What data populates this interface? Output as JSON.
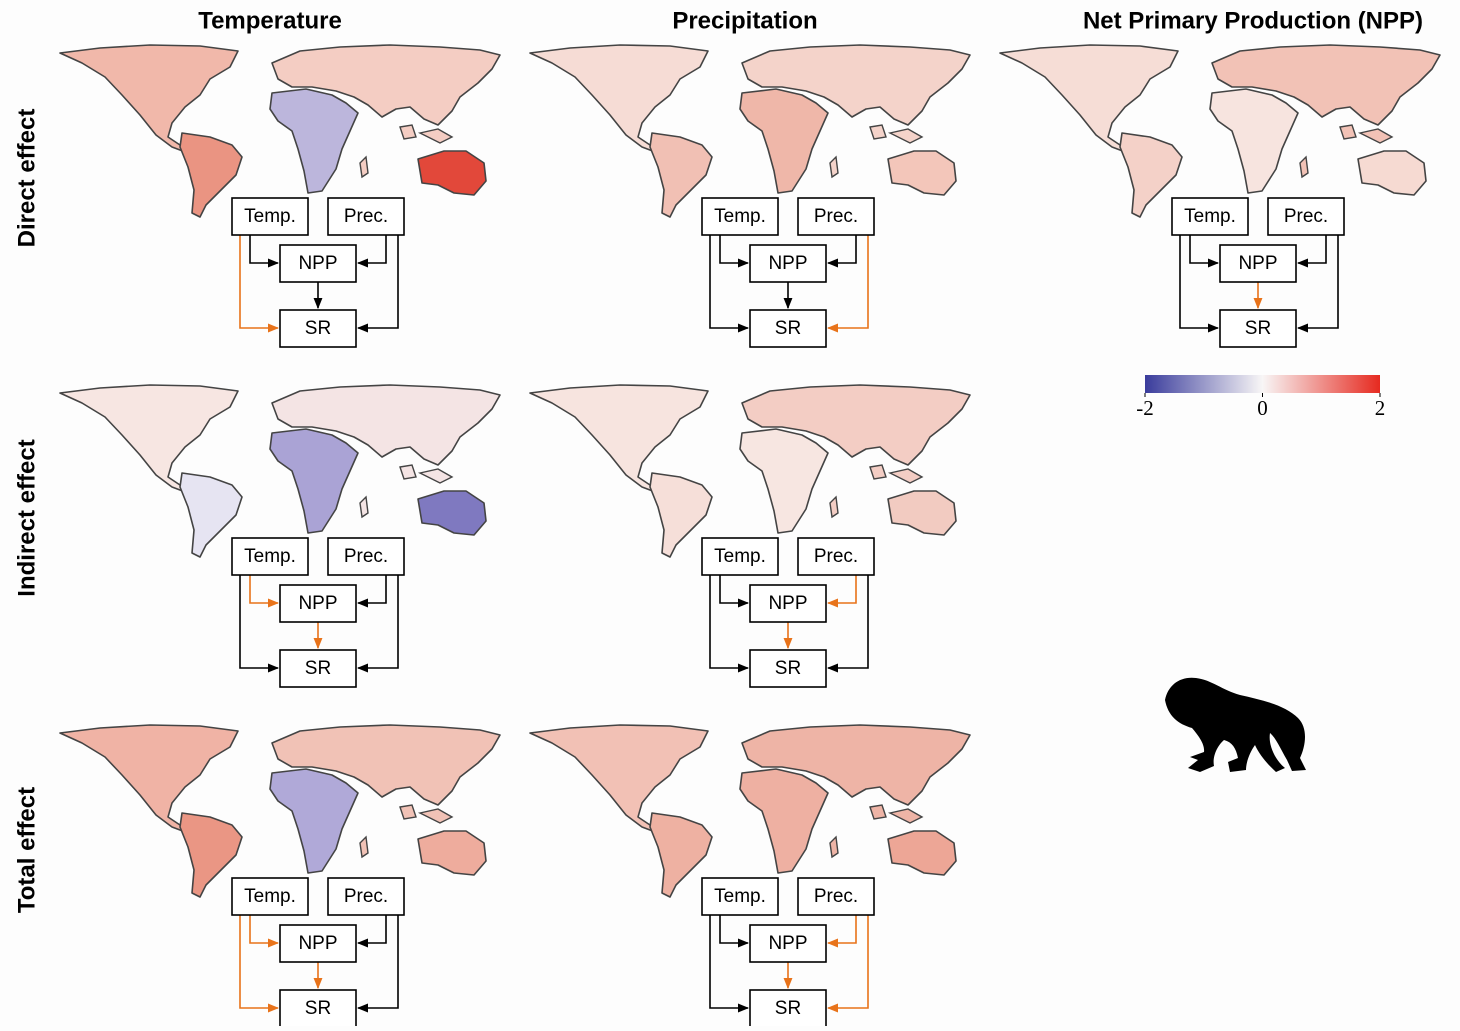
{
  "columns": [
    "Temperature",
    "Precipitation",
    "Net Primary Production (NPP)"
  ],
  "rows": [
    {
      "label": "Direct effect",
      "panels": [
        {
          "nodes": [
            "Temp.",
            "Prec.",
            "NPP",
            "SR"
          ],
          "orange": [
            [
              "Temp.",
              "SR"
            ]
          ],
          "colors": {
            "north_america": "#f1b8aa",
            "south_america": "#ea9482",
            "eurasia": "#f4cdc3",
            "africa": "#bcb6dc",
            "australia": "#e2483a"
          }
        },
        {
          "nodes": [
            "Temp.",
            "Prec.",
            "NPP",
            "SR"
          ],
          "orange": [
            [
              "Prec.",
              "SR"
            ]
          ],
          "colors": {
            "north_america": "#f6dcd5",
            "south_america": "#f1c0b4",
            "eurasia": "#f4d3ca",
            "africa": "#efb7a9",
            "australia": "#f3c6ba"
          }
        },
        {
          "nodes": [
            "Temp.",
            "Prec.",
            "NPP",
            "SR"
          ],
          "orange": [
            [
              "NPP",
              "SR"
            ]
          ],
          "colors": {
            "north_america": "#f6ddd6",
            "south_america": "#f4d1c8",
            "eurasia": "#f2c2b6",
            "africa": "#f7e4df",
            "australia": "#f6dad2"
          }
        }
      ]
    },
    {
      "label": "Indirect effect",
      "panels": [
        {
          "nodes": [
            "Temp.",
            "Prec.",
            "NPP",
            "SR"
          ],
          "orange": [
            [
              "Temp.",
              "NPP"
            ],
            [
              "NPP",
              "SR"
            ]
          ],
          "colors": {
            "north_america": "#f7e6e2",
            "south_america": "#e6e4f2",
            "eurasia": "#f4e4e4",
            "africa": "#aaa3d5",
            "australia": "#7f79c0"
          }
        },
        {
          "nodes": [
            "Temp.",
            "Prec.",
            "NPP",
            "SR"
          ],
          "orange": [
            [
              "Prec.",
              "NPP"
            ],
            [
              "NPP",
              "SR"
            ]
          ],
          "colors": {
            "north_america": "#f7e4df",
            "south_america": "#f6dfd9",
            "eurasia": "#f3cdc4",
            "africa": "#f7e6e1",
            "australia": "#f2cbc1"
          }
        }
      ]
    },
    {
      "label": "Total effect",
      "panels": [
        {
          "nodes": [
            "Temp.",
            "Prec.",
            "NPP",
            "SR"
          ],
          "orange": [
            [
              "Temp.",
              "NPP"
            ],
            [
              "Temp.",
              "SR"
            ],
            [
              "NPP",
              "SR"
            ]
          ],
          "colors": {
            "north_america": "#f0b3a5",
            "south_america": "#ea9684",
            "eurasia": "#f1c2b6",
            "africa": "#b0a9d8",
            "australia": "#eeac9d"
          }
        },
        {
          "nodes": [
            "Temp.",
            "Prec.",
            "NPP",
            "SR"
          ],
          "orange": [
            [
              "Prec.",
              "NPP"
            ],
            [
              "Prec.",
              "SR"
            ],
            [
              "NPP",
              "SR"
            ]
          ],
          "colors": {
            "north_america": "#f2c1b5",
            "south_america": "#eeb1a2",
            "eurasia": "#eeb4a6",
            "africa": "#eeb0a2",
            "australia": "#eda696"
          }
        }
      ]
    }
  ],
  "colorbar": {
    "lim": [
      -2,
      2
    ],
    "ticks": [
      -2,
      0,
      2
    ],
    "colors": [
      "#3a3c9c",
      "#f8f6f6",
      "#e62a20"
    ]
  }
}
